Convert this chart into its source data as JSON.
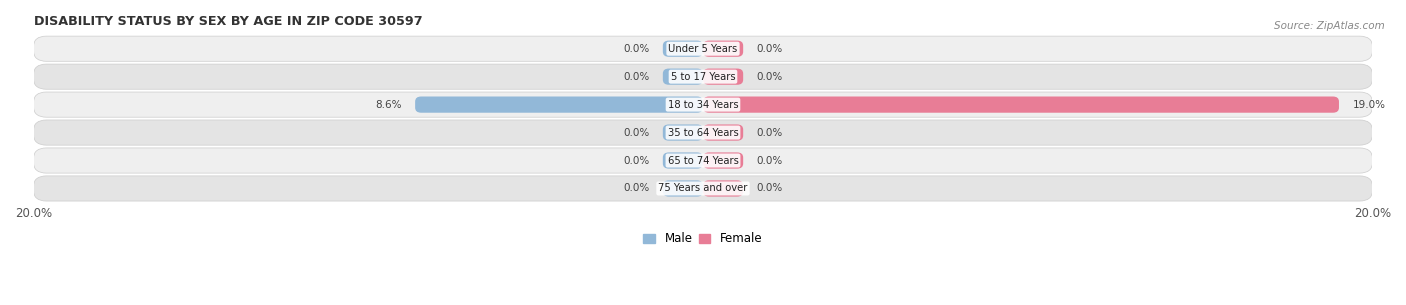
{
  "title": "DISABILITY STATUS BY SEX BY AGE IN ZIP CODE 30597",
  "source": "Source: ZipAtlas.com",
  "categories": [
    "Under 5 Years",
    "5 to 17 Years",
    "18 to 34 Years",
    "35 to 64 Years",
    "65 to 74 Years",
    "75 Years and over"
  ],
  "male_values": [
    0.0,
    0.0,
    8.6,
    0.0,
    0.0,
    0.0
  ],
  "female_values": [
    0.0,
    0.0,
    19.0,
    0.0,
    0.0,
    0.0
  ],
  "male_color": "#92b8d8",
  "female_color": "#e87d96",
  "row_color_odd": "#efefef",
  "row_color_even": "#e4e4e4",
  "xlim": 20.0,
  "legend_male": "Male",
  "legend_female": "Female",
  "bar_height": 0.58,
  "stub_value": 1.2,
  "figsize": [
    14.06,
    3.05
  ],
  "dpi": 100
}
